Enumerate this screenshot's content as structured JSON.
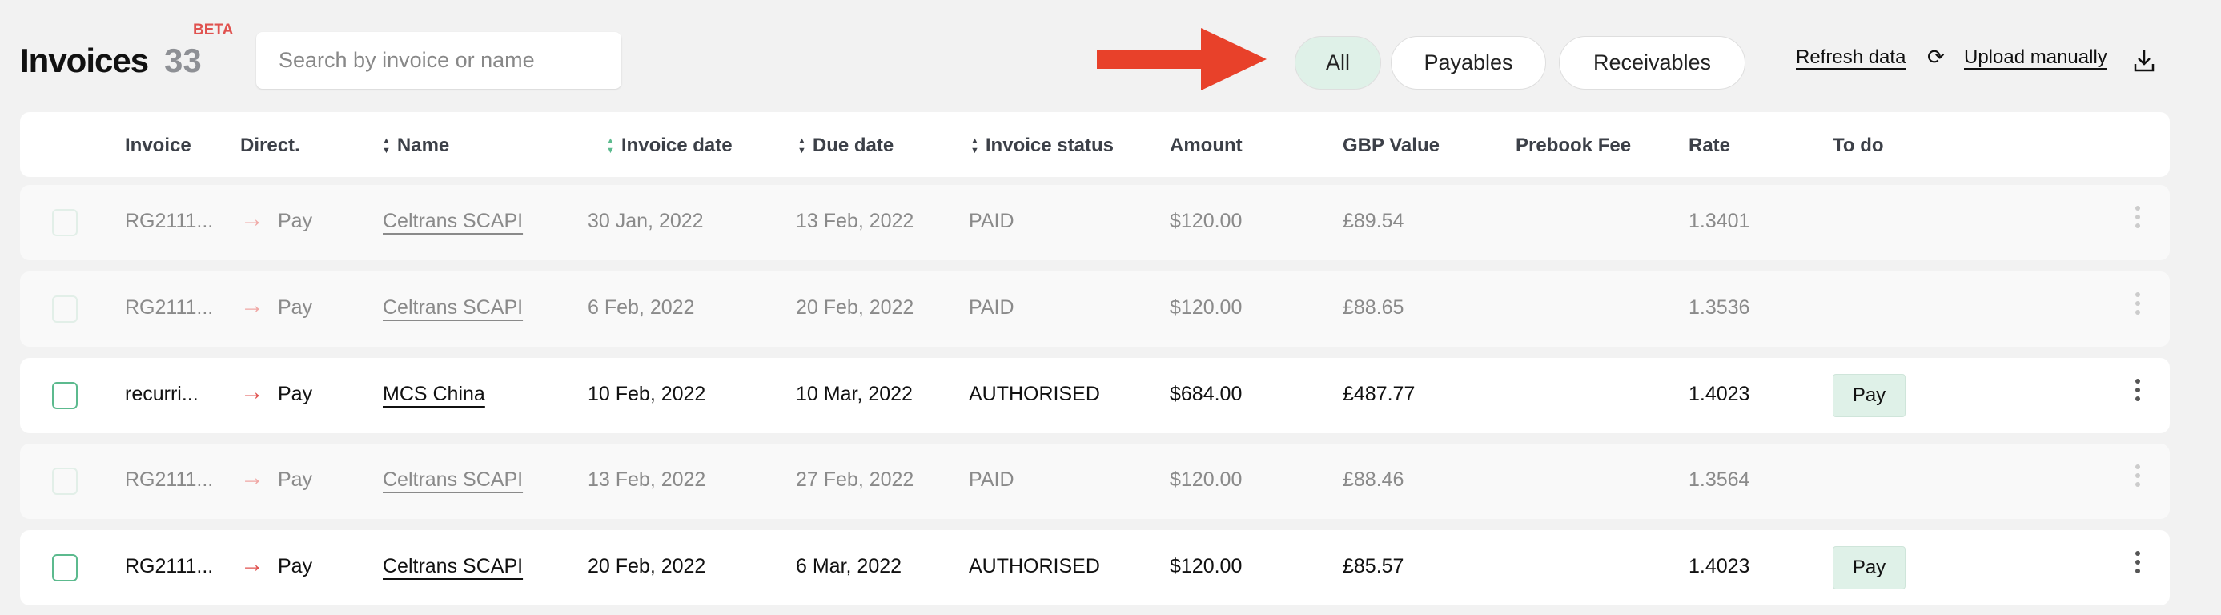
{
  "header": {
    "title": "Invoices",
    "count": "33",
    "badge": "BETA",
    "search_placeholder": "Search by invoice or name"
  },
  "filters": [
    {
      "label": "All",
      "active": true
    },
    {
      "label": "Payables",
      "active": false
    },
    {
      "label": "Receivables",
      "active": false
    }
  ],
  "actions": {
    "refresh": "Refresh data",
    "upload": "Upload manually"
  },
  "annotation": {
    "arrow_color": "#e8412a"
  },
  "columns": [
    "Invoice",
    "Direct.",
    "Name",
    "Invoice date",
    "Due date",
    "Invoice status",
    "Amount",
    "GBP Value",
    "Prebook Fee",
    "Rate",
    "To do"
  ],
  "rows": [
    {
      "invoice": "RG2111...",
      "direction": "Pay",
      "name": "Celtrans SCAPI",
      "invoice_date": "30 Jan, 2022",
      "due_date": "13 Feb, 2022",
      "status": "PAID",
      "amount": "$120.00",
      "gbp": "£89.54",
      "prebook": "",
      "rate": "1.3401",
      "todo": ""
    },
    {
      "invoice": "RG2111...",
      "direction": "Pay",
      "name": "Celtrans SCAPI",
      "invoice_date": "6 Feb, 2022",
      "due_date": "20 Feb, 2022",
      "status": "PAID",
      "amount": "$120.00",
      "gbp": "£88.65",
      "prebook": "",
      "rate": "1.3536",
      "todo": ""
    },
    {
      "invoice": "recurri...",
      "direction": "Pay",
      "name": "MCS China",
      "invoice_date": "10 Feb, 2022",
      "due_date": "10 Mar, 2022",
      "status": "AUTHORISED",
      "amount": "$684.00",
      "gbp": "£487.77",
      "prebook": "",
      "rate": "1.4023",
      "todo": "Pay"
    },
    {
      "invoice": "RG2111...",
      "direction": "Pay",
      "name": "Celtrans SCAPI",
      "invoice_date": "13 Feb, 2022",
      "due_date": "27 Feb, 2022",
      "status": "PAID",
      "amount": "$120.00",
      "gbp": "£88.46",
      "prebook": "",
      "rate": "1.3564",
      "todo": ""
    },
    {
      "invoice": "RG2111...",
      "direction": "Pay",
      "name": "Celtrans SCAPI",
      "invoice_date": "20 Feb, 2022",
      "due_date": "6 Mar, 2022",
      "status": "AUTHORISED",
      "amount": "$120.00",
      "gbp": "£85.57",
      "prebook": "",
      "rate": "1.4023",
      "todo": "Pay"
    }
  ]
}
